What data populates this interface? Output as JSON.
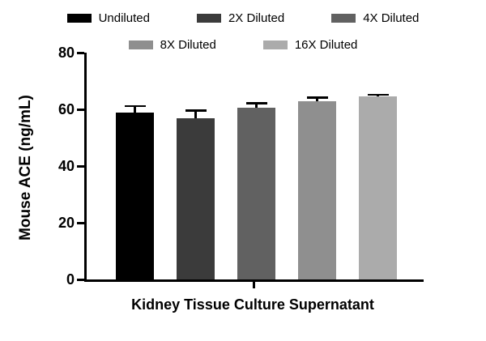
{
  "chart_data": {
    "type": "bar",
    "title": "",
    "xlabel": "Kidney Tissue Culture Supernatant",
    "ylabel": "Mouse ACE (ng/mL)",
    "ylim": [
      0,
      80
    ],
    "yticks": [
      0,
      20,
      40,
      60,
      80
    ],
    "categories": [
      "Undiluted",
      "2X Diluted",
      "4X Diluted",
      "8X Diluted",
      "16X Diluted"
    ],
    "values": [
      59,
      57,
      60.5,
      63,
      64.5
    ],
    "errors_plus": [
      2.5,
      3,
      2,
      1.5,
      1
    ],
    "bar_colors": [
      "#000000",
      "#3b3b3b",
      "#616161",
      "#8f8f8f",
      "#ababab"
    ],
    "legend_position": "top",
    "legend_rows": [
      [
        0,
        1,
        2
      ],
      [
        3,
        4
      ]
    ],
    "grid": false,
    "axis_color": "#000000"
  }
}
